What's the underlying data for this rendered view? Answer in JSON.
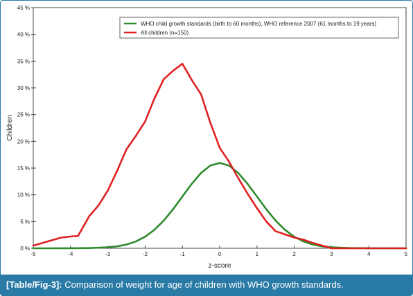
{
  "figure": {
    "caption_tag": "[Table/Fig-3]:",
    "caption_text": "Comparison of weight for age of children with WHO growth standards."
  },
  "chart_data": {
    "type": "line",
    "xlabel": "z-score",
    "ylabel": "Children",
    "xlim": [
      -5,
      5
    ],
    "ylim": [
      0,
      45
    ],
    "x_ticks": [
      "-5",
      "-4",
      "-3",
      "-2",
      "-1",
      "0",
      "1",
      "2",
      "3",
      "4",
      "5"
    ],
    "y_ticks": [
      "0 %",
      "5 %",
      "10 %",
      "15 %",
      "20 %",
      "25 %",
      "30 %",
      "35 %",
      "40 %",
      "45 %"
    ],
    "legend_position": "top-right",
    "grid": false,
    "series": [
      {
        "name": "WHO child growth standards (birth to 60 months), WHO reference 2007 (61 months to 19 years)",
        "color": "#2e8b2e",
        "x": [
          -5,
          -4.5,
          -4,
          -3.5,
          -3,
          -2.75,
          -2.5,
          -2.25,
          -2,
          -1.75,
          -1.5,
          -1.25,
          -1,
          -0.75,
          -0.5,
          -0.25,
          0,
          0.25,
          0.5,
          0.75,
          1,
          1.25,
          1.5,
          1.75,
          2,
          2.25,
          2.5,
          2.75,
          3,
          3.5,
          4,
          4.5,
          5
        ],
        "y": [
          0,
          0,
          0.01,
          0.04,
          0.18,
          0.36,
          0.7,
          1.27,
          2.16,
          3.45,
          5.18,
          7.3,
          9.68,
          12.04,
          14.08,
          15.47,
          15.96,
          15.47,
          14.08,
          12.04,
          9.68,
          7.3,
          5.18,
          3.45,
          2.16,
          1.27,
          0.7,
          0.36,
          0.18,
          0.04,
          0.01,
          0,
          0
        ]
      },
      {
        "name": "All children (n=150)",
        "color": "#e02020",
        "x": [
          -5,
          -4.75,
          -4.5,
          -4.25,
          -4,
          -3.8,
          -3.5,
          -3.25,
          -3,
          -2.75,
          -2.5,
          -2.25,
          -2,
          -1.75,
          -1.5,
          -1.25,
          -1,
          -0.75,
          -0.5,
          -0.25,
          0,
          0.25,
          0.5,
          0.75,
          1,
          1.25,
          1.5,
          1.75,
          2,
          2.25,
          2.5,
          2.75,
          3,
          3.5,
          4,
          4.5,
          5
        ],
        "y": [
          0.5,
          1,
          1.5,
          2,
          2.2,
          2.3,
          6,
          8,
          10.8,
          14.5,
          18.5,
          21,
          23.7,
          28,
          31.6,
          33.2,
          34.5,
          31.5,
          28.8,
          23.5,
          18.8,
          16.2,
          13.1,
          10.2,
          7.5,
          5,
          3.2,
          2.6,
          2,
          1.6,
          1,
          0.5,
          0,
          0,
          0,
          0,
          0
        ]
      }
    ]
  }
}
